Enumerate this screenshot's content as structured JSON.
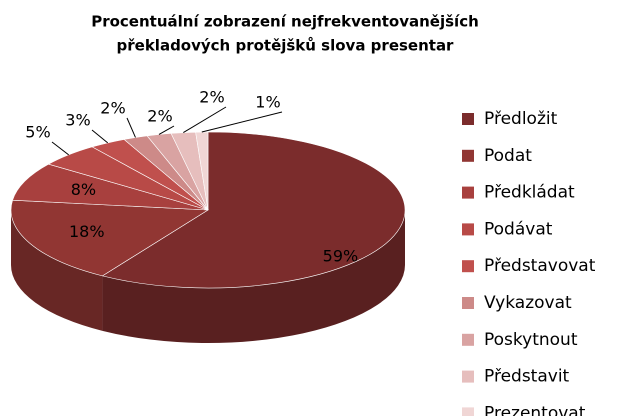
{
  "chart_data": {
    "type": "pie",
    "title": [
      "Procentuální zobrazení nejfrekventovanějších",
      "překladových protějšků slova presentar"
    ],
    "categories": [
      "Předložit",
      "Podat",
      "Předkládat",
      "Podávat",
      "Představovat",
      "Vykazovat",
      "Poskytnout",
      "Představit",
      "Prezentovat"
    ],
    "values": [
      59,
      18,
      8,
      5,
      3,
      2,
      2,
      2,
      1
    ],
    "value_labels": [
      "59%",
      "18%",
      "8%",
      "5%",
      "3%",
      "2%",
      "2%",
      "2%",
      "1%"
    ],
    "colors": [
      "#7b2c2c",
      "#913633",
      "#a8403e",
      "#b84a47",
      "#c0504d",
      "#cd8a88",
      "#d9a3a2",
      "#e6bebd",
      "#f0d6d5"
    ],
    "legend": "right"
  }
}
